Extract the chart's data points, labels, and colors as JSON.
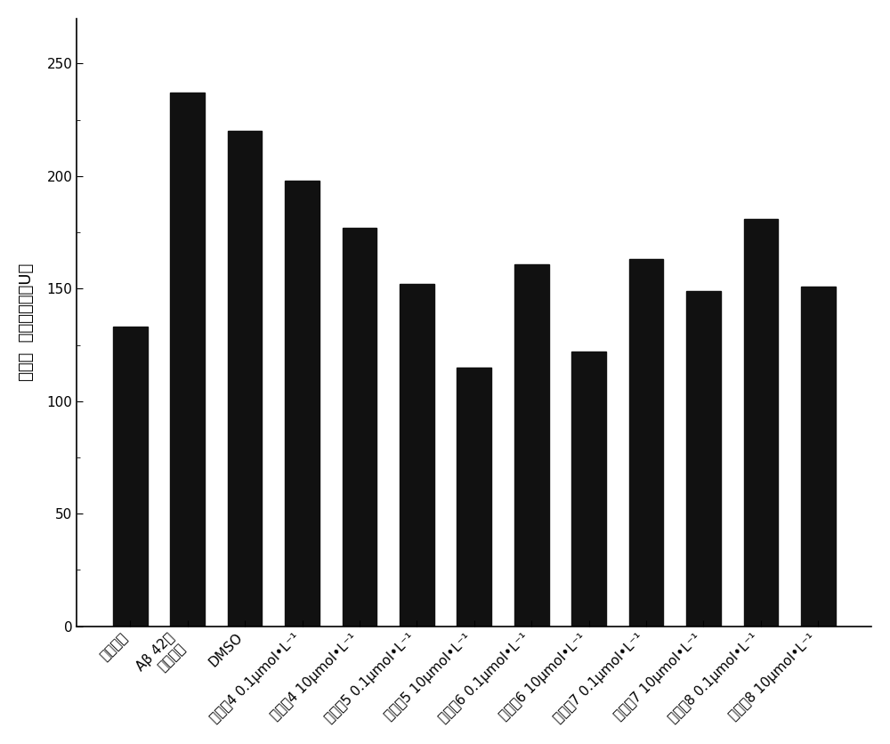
{
  "categories": [
    "正常果蝇",
    "Aβ 42转\n基因果蝇",
    "DMSO",
    "化合物4 0.1μmol•L⁻¹",
    "化合物4 10μmol•L⁻¹",
    "化合物5 0.1μmol•L⁻¹",
    "化合物5 10μmol•L⁻¹",
    "化合物6 0.1μmol•L⁻¹",
    "化合物6 10μmol•L⁻¹",
    "化合物7 0.1μmol•L⁻¹",
    "化合物7 10μmol•L⁻¹",
    "化合物8 0.1μmol•L⁻¹",
    "化合物8 10μmol•L⁻¹"
  ],
  "values": [
    133,
    237,
    220,
    198,
    177,
    152,
    115,
    161,
    122,
    163,
    149,
    181,
    151
  ],
  "bar_color": "#111111",
  "ylabel": "乙酰胆 碱酯酶活力（U）",
  "ylim": [
    0,
    270
  ],
  "yticks": [
    0,
    50,
    100,
    150,
    200,
    250
  ],
  "bar_width": 0.6,
  "background_color": "#ffffff",
  "title_fontsize": 13,
  "tick_fontsize": 11,
  "label_fontsize": 13
}
